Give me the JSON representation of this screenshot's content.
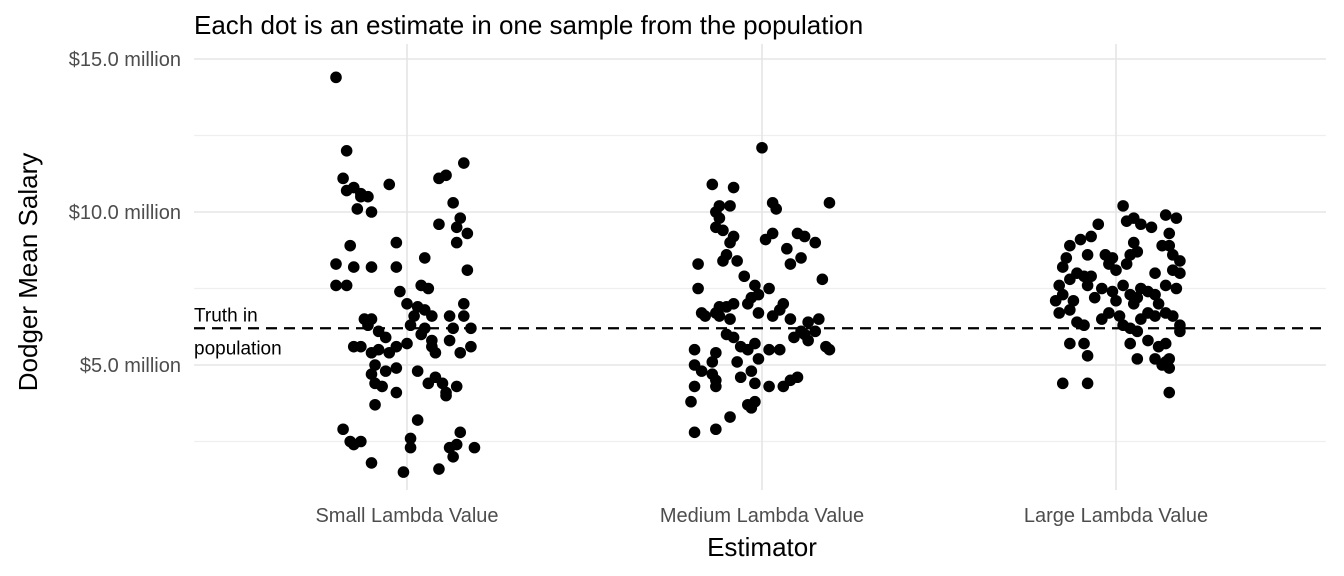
{
  "chart_data": {
    "type": "scatter",
    "title": "Each dot is an estimate in one sample from the population",
    "xlabel": "Estimator",
    "ylabel": "Dodger Mean Salary",
    "categories": [
      "Small Lambda Value",
      "Medium Lambda Value",
      "Large Lambda Value"
    ],
    "y_ticks": [
      {
        "value": 5,
        "label": "$5.0 million"
      },
      {
        "value": 10,
        "label": "$10.0 million"
      },
      {
        "value": 15,
        "label": "$15.0 million"
      }
    ],
    "ylim": [
      1.3,
      15.0
    ],
    "grid": true,
    "reference_line": {
      "value": 6.2,
      "label_lines": [
        "Truth in",
        "population"
      ]
    },
    "series": [
      {
        "category": "Small Lambda Value",
        "points": [
          {
            "j": -0.2,
            "y": 14.4
          },
          {
            "j": -0.17,
            "y": 12.0
          },
          {
            "j": -0.18,
            "y": 11.1
          },
          {
            "j": -0.17,
            "y": 10.7
          },
          {
            "j": -0.15,
            "y": 10.8
          },
          {
            "j": -0.13,
            "y": 10.6
          },
          {
            "j": -0.13,
            "y": 10.5
          },
          {
            "j": -0.11,
            "y": 10.5
          },
          {
            "j": -0.05,
            "y": 10.9
          },
          {
            "j": -0.14,
            "y": 10.1
          },
          {
            "j": -0.1,
            "y": 10.0
          },
          {
            "j": -0.16,
            "y": 8.9
          },
          {
            "j": -0.2,
            "y": 8.3
          },
          {
            "j": -0.15,
            "y": 8.2
          },
          {
            "j": -0.1,
            "y": 8.2
          },
          {
            "j": -0.2,
            "y": 7.6
          },
          {
            "j": -0.17,
            "y": 7.6
          },
          {
            "j": -0.03,
            "y": 9.0
          },
          {
            "j": -0.03,
            "y": 8.2
          },
          {
            "j": 0.05,
            "y": 8.5
          },
          {
            "j": -0.12,
            "y": 6.5
          },
          {
            "j": -0.1,
            "y": 6.5
          },
          {
            "j": -0.11,
            "y": 6.3
          },
          {
            "j": -0.08,
            "y": 6.1
          },
          {
            "j": -0.06,
            "y": 5.9
          },
          {
            "j": -0.15,
            "y": 5.6
          },
          {
            "j": -0.13,
            "y": 5.6
          },
          {
            "j": -0.1,
            "y": 5.4
          },
          {
            "j": -0.08,
            "y": 5.5
          },
          {
            "j": -0.05,
            "y": 5.4
          },
          {
            "j": -0.03,
            "y": 5.6
          },
          {
            "j": 0.0,
            "y": 5.7
          },
          {
            "j": -0.02,
            "y": 7.4
          },
          {
            "j": 0.0,
            "y": 7.0
          },
          {
            "j": 0.02,
            "y": 6.6
          },
          {
            "j": 0.03,
            "y": 6.9
          },
          {
            "j": 0.01,
            "y": 6.3
          },
          {
            "j": -0.09,
            "y": 5.0
          },
          {
            "j": -0.06,
            "y": 4.8
          },
          {
            "j": -0.03,
            "y": 4.9
          },
          {
            "j": -0.1,
            "y": 4.7
          },
          {
            "j": -0.09,
            "y": 4.4
          },
          {
            "j": -0.07,
            "y": 4.3
          },
          {
            "j": -0.03,
            "y": 4.1
          },
          {
            "j": -0.09,
            "y": 3.7
          },
          {
            "j": 0.03,
            "y": 3.2
          },
          {
            "j": -0.18,
            "y": 2.9
          },
          {
            "j": -0.16,
            "y": 2.5
          },
          {
            "j": -0.15,
            "y": 2.4
          },
          {
            "j": -0.13,
            "y": 2.5
          },
          {
            "j": -0.1,
            "y": 1.8
          },
          {
            "j": -0.01,
            "y": 1.5
          },
          {
            "j": 0.01,
            "y": 2.6
          },
          {
            "j": 0.01,
            "y": 2.3
          },
          {
            "j": 0.04,
            "y": 7.6
          },
          {
            "j": 0.06,
            "y": 7.5
          },
          {
            "j": 0.05,
            "y": 6.8
          },
          {
            "j": 0.07,
            "y": 6.6
          },
          {
            "j": 0.05,
            "y": 6.2
          },
          {
            "j": 0.04,
            "y": 6.0
          },
          {
            "j": 0.07,
            "y": 5.6
          },
          {
            "j": 0.08,
            "y": 5.4
          },
          {
            "j": 0.07,
            "y": 5.8
          },
          {
            "j": 0.03,
            "y": 4.8
          },
          {
            "j": 0.06,
            "y": 4.4
          },
          {
            "j": 0.08,
            "y": 4.6
          },
          {
            "j": 0.1,
            "y": 4.4
          },
          {
            "j": 0.11,
            "y": 4.1
          },
          {
            "j": 0.11,
            "y": 4.0
          },
          {
            "j": 0.09,
            "y": 11.1
          },
          {
            "j": 0.11,
            "y": 11.2
          },
          {
            "j": 0.13,
            "y": 10.3
          },
          {
            "j": 0.09,
            "y": 9.6
          },
          {
            "j": 0.15,
            "y": 9.8
          },
          {
            "j": 0.14,
            "y": 9.5
          },
          {
            "j": 0.14,
            "y": 9.0
          },
          {
            "j": 0.17,
            "y": 9.3
          },
          {
            "j": 0.16,
            "y": 11.6
          },
          {
            "j": 0.17,
            "y": 8.1
          },
          {
            "j": 0.16,
            "y": 7.0
          },
          {
            "j": 0.16,
            "y": 6.6
          },
          {
            "j": 0.12,
            "y": 6.6
          },
          {
            "j": 0.13,
            "y": 6.2
          },
          {
            "j": 0.18,
            "y": 6.2
          },
          {
            "j": 0.12,
            "y": 5.8
          },
          {
            "j": 0.15,
            "y": 5.4
          },
          {
            "j": 0.18,
            "y": 5.6
          },
          {
            "j": 0.14,
            "y": 4.3
          },
          {
            "j": 0.12,
            "y": 2.3
          },
          {
            "j": 0.13,
            "y": 2.0
          },
          {
            "j": 0.14,
            "y": 2.4
          },
          {
            "j": 0.15,
            "y": 2.8
          },
          {
            "j": 0.09,
            "y": 1.6
          },
          {
            "j": 0.19,
            "y": 2.3
          }
        ]
      },
      {
        "category": "Medium Lambda Value",
        "points": [
          {
            "j": 0.0,
            "y": 12.1
          },
          {
            "j": -0.14,
            "y": 10.9
          },
          {
            "j": -0.08,
            "y": 10.8
          },
          {
            "j": -0.09,
            "y": 10.2
          },
          {
            "j": -0.12,
            "y": 10.2
          },
          {
            "j": -0.13,
            "y": 10.0
          },
          {
            "j": -0.12,
            "y": 9.8
          },
          {
            "j": -0.13,
            "y": 9.5
          },
          {
            "j": -0.11,
            "y": 9.4
          },
          {
            "j": -0.08,
            "y": 9.2
          },
          {
            "j": -0.09,
            "y": 9.0
          },
          {
            "j": 0.03,
            "y": 10.3
          },
          {
            "j": 0.04,
            "y": 10.1
          },
          {
            "j": 0.19,
            "y": 10.3
          },
          {
            "j": -0.18,
            "y": 8.3
          },
          {
            "j": -0.1,
            "y": 8.6
          },
          {
            "j": -0.11,
            "y": 8.4
          },
          {
            "j": -0.07,
            "y": 8.4
          },
          {
            "j": 0.01,
            "y": 9.1
          },
          {
            "j": 0.03,
            "y": 9.3
          },
          {
            "j": 0.1,
            "y": 9.3
          },
          {
            "j": 0.12,
            "y": 9.2
          },
          {
            "j": 0.15,
            "y": 9.0
          },
          {
            "j": 0.07,
            "y": 8.8
          },
          {
            "j": 0.11,
            "y": 8.5
          },
          {
            "j": 0.08,
            "y": 8.3
          },
          {
            "j": 0.17,
            "y": 7.8
          },
          {
            "j": -0.18,
            "y": 7.5
          },
          {
            "j": -0.05,
            "y": 7.9
          },
          {
            "j": -0.02,
            "y": 7.6
          },
          {
            "j": -0.01,
            "y": 7.3
          },
          {
            "j": 0.02,
            "y": 7.5
          },
          {
            "j": 0.06,
            "y": 7.0
          },
          {
            "j": -0.04,
            "y": 7.0
          },
          {
            "j": -0.03,
            "y": 7.2
          },
          {
            "j": -0.08,
            "y": 7.0
          },
          {
            "j": -0.1,
            "y": 6.9
          },
          {
            "j": -0.12,
            "y": 6.9
          },
          {
            "j": -0.17,
            "y": 6.7
          },
          {
            "j": -0.16,
            "y": 6.6
          },
          {
            "j": -0.12,
            "y": 6.6
          },
          {
            "j": -0.13,
            "y": 6.7
          },
          {
            "j": -0.09,
            "y": 6.5
          },
          {
            "j": -0.01,
            "y": 6.7
          },
          {
            "j": 0.03,
            "y": 6.6
          },
          {
            "j": 0.05,
            "y": 6.8
          },
          {
            "j": 0.08,
            "y": 6.5
          },
          {
            "j": 0.13,
            "y": 6.4
          },
          {
            "j": 0.16,
            "y": 6.5
          },
          {
            "j": 0.11,
            "y": 6.1
          },
          {
            "j": 0.12,
            "y": 6.0
          },
          {
            "j": 0.15,
            "y": 6.1
          },
          {
            "j": -0.1,
            "y": 6.0
          },
          {
            "j": -0.08,
            "y": 5.9
          },
          {
            "j": -0.19,
            "y": 5.5
          },
          {
            "j": -0.19,
            "y": 5.0
          },
          {
            "j": -0.17,
            "y": 4.8
          },
          {
            "j": -0.14,
            "y": 5.1
          },
          {
            "j": -0.13,
            "y": 5.4
          },
          {
            "j": -0.06,
            "y": 5.6
          },
          {
            "j": -0.04,
            "y": 5.5
          },
          {
            "j": -0.02,
            "y": 5.7
          },
          {
            "j": 0.02,
            "y": 5.5
          },
          {
            "j": 0.05,
            "y": 5.5
          },
          {
            "j": 0.09,
            "y": 5.9
          },
          {
            "j": 0.18,
            "y": 5.6
          },
          {
            "j": 0.19,
            "y": 5.5
          },
          {
            "j": 0.13,
            "y": 5.8
          },
          {
            "j": -0.07,
            "y": 5.1
          },
          {
            "j": -0.03,
            "y": 4.8
          },
          {
            "j": -0.01,
            "y": 5.2
          },
          {
            "j": -0.14,
            "y": 4.7
          },
          {
            "j": -0.13,
            "y": 4.5
          },
          {
            "j": -0.13,
            "y": 4.3
          },
          {
            "j": -0.19,
            "y": 4.3
          },
          {
            "j": -0.06,
            "y": 4.6
          },
          {
            "j": -0.02,
            "y": 4.4
          },
          {
            "j": 0.02,
            "y": 4.3
          },
          {
            "j": 0.08,
            "y": 4.5
          },
          {
            "j": 0.06,
            "y": 4.3
          },
          {
            "j": 0.1,
            "y": 4.6
          },
          {
            "j": -0.2,
            "y": 3.8
          },
          {
            "j": -0.04,
            "y": 3.7
          },
          {
            "j": -0.02,
            "y": 3.8
          },
          {
            "j": -0.03,
            "y": 3.6
          },
          {
            "j": -0.09,
            "y": 3.3
          },
          {
            "j": -0.19,
            "y": 2.8
          },
          {
            "j": -0.13,
            "y": 2.9
          }
        ]
      },
      {
        "category": "Large Lambda Value",
        "points": [
          {
            "j": 0.02,
            "y": 10.2
          },
          {
            "j": 0.05,
            "y": 9.8
          },
          {
            "j": 0.1,
            "y": 9.5
          },
          {
            "j": 0.03,
            "y": 9.7
          },
          {
            "j": 0.07,
            "y": 9.6
          },
          {
            "j": 0.14,
            "y": 9.9
          },
          {
            "j": 0.17,
            "y": 9.8
          },
          {
            "j": 0.15,
            "y": 9.3
          },
          {
            "j": -0.05,
            "y": 9.6
          },
          {
            "j": -0.07,
            "y": 9.2
          },
          {
            "j": -0.1,
            "y": 9.1
          },
          {
            "j": -0.13,
            "y": 8.9
          },
          {
            "j": -0.08,
            "y": 8.6
          },
          {
            "j": -0.03,
            "y": 8.6
          },
          {
            "j": -0.01,
            "y": 8.5
          },
          {
            "j": -0.02,
            "y": 8.3
          },
          {
            "j": 0.0,
            "y": 8.1
          },
          {
            "j": 0.04,
            "y": 8.6
          },
          {
            "j": 0.06,
            "y": 8.7
          },
          {
            "j": 0.03,
            "y": 8.3
          },
          {
            "j": 0.05,
            "y": 9.0
          },
          {
            "j": 0.13,
            "y": 8.9
          },
          {
            "j": 0.15,
            "y": 8.9
          },
          {
            "j": 0.16,
            "y": 8.6
          },
          {
            "j": 0.18,
            "y": 8.4
          },
          {
            "j": 0.16,
            "y": 8.1
          },
          {
            "j": 0.18,
            "y": 8.0
          },
          {
            "j": 0.11,
            "y": 8.0
          },
          {
            "j": -0.14,
            "y": 8.5
          },
          {
            "j": -0.15,
            "y": 8.2
          },
          {
            "j": -0.13,
            "y": 7.8
          },
          {
            "j": -0.11,
            "y": 8.0
          },
          {
            "j": -0.09,
            "y": 7.9
          },
          {
            "j": -0.07,
            "y": 7.9
          },
          {
            "j": -0.08,
            "y": 7.6
          },
          {
            "j": -0.04,
            "y": 7.5
          },
          {
            "j": -0.01,
            "y": 7.4
          },
          {
            "j": 0.02,
            "y": 7.6
          },
          {
            "j": 0.04,
            "y": 7.3
          },
          {
            "j": 0.06,
            "y": 7.2
          },
          {
            "j": 0.07,
            "y": 7.5
          },
          {
            "j": 0.09,
            "y": 7.4
          },
          {
            "j": 0.11,
            "y": 7.3
          },
          {
            "j": 0.14,
            "y": 7.6
          },
          {
            "j": 0.17,
            "y": 7.5
          },
          {
            "j": -0.16,
            "y": 7.6
          },
          {
            "j": -0.15,
            "y": 7.3
          },
          {
            "j": -0.17,
            "y": 7.1
          },
          {
            "j": -0.12,
            "y": 7.1
          },
          {
            "j": -0.06,
            "y": 7.2
          },
          {
            "j": 0.0,
            "y": 7.1
          },
          {
            "j": 0.05,
            "y": 7.0
          },
          {
            "j": 0.12,
            "y": 7.0
          },
          {
            "j": 0.14,
            "y": 6.7
          },
          {
            "j": -0.16,
            "y": 6.7
          },
          {
            "j": -0.13,
            "y": 6.8
          },
          {
            "j": -0.11,
            "y": 6.4
          },
          {
            "j": -0.09,
            "y": 6.3
          },
          {
            "j": -0.04,
            "y": 6.5
          },
          {
            "j": -0.02,
            "y": 6.7
          },
          {
            "j": 0.01,
            "y": 6.6
          },
          {
            "j": 0.02,
            "y": 6.3
          },
          {
            "j": 0.04,
            "y": 6.2
          },
          {
            "j": 0.07,
            "y": 6.5
          },
          {
            "j": 0.09,
            "y": 6.7
          },
          {
            "j": 0.11,
            "y": 6.6
          },
          {
            "j": 0.16,
            "y": 6.6
          },
          {
            "j": 0.18,
            "y": 6.3
          },
          {
            "j": 0.18,
            "y": 6.1
          },
          {
            "j": 0.06,
            "y": 6.1
          },
          {
            "j": -0.13,
            "y": 5.7
          },
          {
            "j": -0.09,
            "y": 5.7
          },
          {
            "j": -0.08,
            "y": 5.3
          },
          {
            "j": 0.04,
            "y": 5.7
          },
          {
            "j": 0.09,
            "y": 5.8
          },
          {
            "j": 0.12,
            "y": 5.6
          },
          {
            "j": 0.14,
            "y": 5.7
          },
          {
            "j": 0.11,
            "y": 5.2
          },
          {
            "j": 0.14,
            "y": 5.1
          },
          {
            "j": 0.15,
            "y": 5.2
          },
          {
            "j": 0.13,
            "y": 5.0
          },
          {
            "j": 0.06,
            "y": 5.2
          },
          {
            "j": 0.15,
            "y": 4.9
          },
          {
            "j": -0.15,
            "y": 4.4
          },
          {
            "j": -0.08,
            "y": 4.4
          },
          {
            "j": 0.15,
            "y": 4.1
          }
        ]
      }
    ]
  }
}
